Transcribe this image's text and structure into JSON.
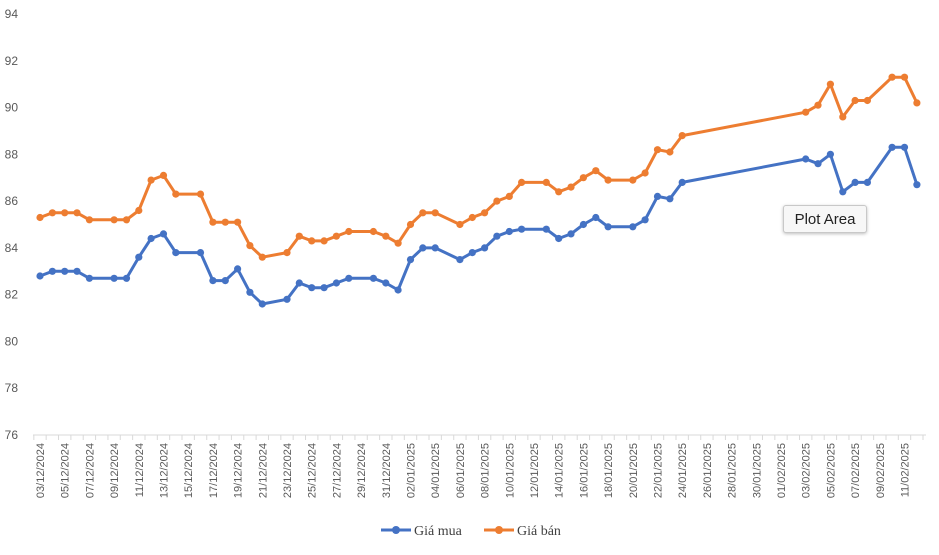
{
  "chart_data": {
    "type": "line",
    "title": "",
    "xlabel": "",
    "ylabel": "",
    "ylim": [
      76,
      94
    ],
    "yticks": [
      "76",
      "78",
      "80",
      "82",
      "84",
      "86",
      "88",
      "90",
      "92",
      "94"
    ],
    "grid": false,
    "legend_position": "bottom",
    "x_tick_labels": [
      "03/12/2024",
      "05/12/2024",
      "07/12/2024",
      "09/12/2024",
      "11/12/2024",
      "13/12/2024",
      "15/12/2024",
      "17/12/2024",
      "19/12/2024",
      "21/12/2024",
      "23/12/2024",
      "25/12/2024",
      "27/12/2024",
      "29/12/2024",
      "31/12/2024",
      "02/01/2025",
      "04/01/2025",
      "06/01/2025",
      "08/01/2025",
      "10/01/2025",
      "12/01/2025",
      "14/01/2025",
      "16/01/2025",
      "18/01/2025",
      "20/01/2025",
      "22/01/2025",
      "24/01/2025",
      "26/01/2025",
      "28/01/2025",
      "30/01/2025",
      "01/02/2025",
      "03/02/2025",
      "05/02/2025",
      "07/02/2025",
      "09/02/2025",
      "11/02/2025"
    ],
    "x": [
      "03/12/2024",
      "04/12/2024",
      "05/12/2024",
      "06/12/2024",
      "07/12/2024",
      "09/12/2024",
      "10/12/2024",
      "11/12/2024",
      "12/12/2024",
      "13/12/2024",
      "14/12/2024",
      "16/12/2024",
      "17/12/2024",
      "18/12/2024",
      "19/12/2024",
      "20/12/2024",
      "21/12/2024",
      "23/12/2024",
      "24/12/2024",
      "25/12/2024",
      "26/12/2024",
      "27/12/2024",
      "28/12/2024",
      "30/12/2024",
      "31/12/2024",
      "01/01/2025",
      "02/01/2025",
      "03/01/2025",
      "04/01/2025",
      "06/01/2025",
      "07/01/2025",
      "08/01/2025",
      "09/01/2025",
      "10/01/2025",
      "11/01/2025",
      "13/01/2025",
      "14/01/2025",
      "15/01/2025",
      "16/01/2025",
      "17/01/2025",
      "18/01/2025",
      "20/01/2025",
      "21/01/2025",
      "22/01/2025",
      "23/01/2025",
      "24/01/2025",
      "03/02/2025",
      "04/02/2025",
      "05/02/2025",
      "06/02/2025",
      "07/02/2025",
      "08/02/2025",
      "10/02/2025",
      "11/02/2025",
      "12/02/2025"
    ],
    "series": [
      {
        "name": "Giá mua",
        "color": "#4472c4",
        "values": [
          82.8,
          83.0,
          83.0,
          83.0,
          82.7,
          82.7,
          82.7,
          83.6,
          84.4,
          84.6,
          83.8,
          83.8,
          82.6,
          82.6,
          83.1,
          82.1,
          81.6,
          81.8,
          82.5,
          82.3,
          82.3,
          82.5,
          82.7,
          82.7,
          82.5,
          82.2,
          83.5,
          84.0,
          84.0,
          83.5,
          83.8,
          84.0,
          84.5,
          84.7,
          84.8,
          84.8,
          84.4,
          84.6,
          85.0,
          85.3,
          84.9,
          84.9,
          85.2,
          86.2,
          86.1,
          86.8,
          87.8,
          87.6,
          88.0,
          86.4,
          86.8,
          86.8,
          88.3,
          88.3,
          86.7
        ]
      },
      {
        "name": "Giá bán",
        "color": "#ed7d31",
        "values": [
          85.3,
          85.5,
          85.5,
          85.5,
          85.2,
          85.2,
          85.2,
          85.6,
          86.9,
          87.1,
          86.3,
          86.3,
          85.1,
          85.1,
          85.1,
          84.1,
          83.6,
          83.8,
          84.5,
          84.3,
          84.3,
          84.5,
          84.7,
          84.7,
          84.5,
          84.2,
          85.0,
          85.5,
          85.5,
          85.0,
          85.3,
          85.5,
          86.0,
          86.2,
          86.8,
          86.8,
          86.4,
          86.6,
          87.0,
          87.3,
          86.9,
          86.9,
          87.2,
          88.2,
          88.1,
          88.8,
          89.8,
          90.1,
          91.0,
          89.6,
          90.3,
          90.3,
          91.3,
          91.3,
          90.2
        ]
      }
    ]
  },
  "tooltip": {
    "text": "Plot Area"
  }
}
